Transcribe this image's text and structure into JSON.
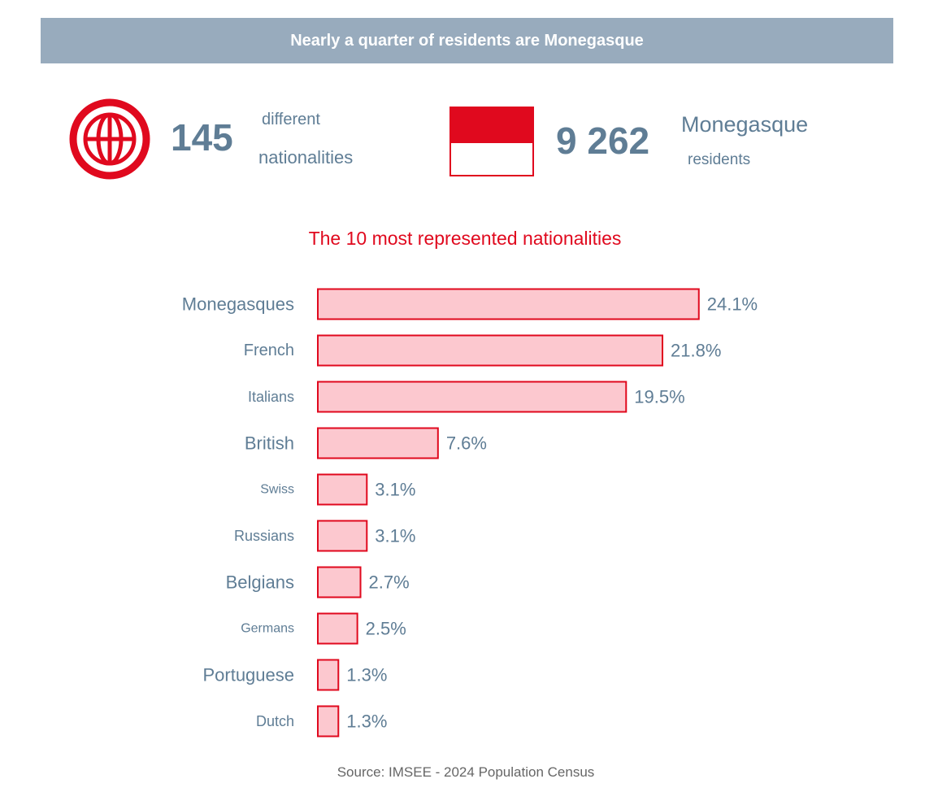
{
  "header": {
    "title": "Nearly a quarter of residents are Monegasque"
  },
  "stats": {
    "nationalities": {
      "value": "145",
      "label_top": "different",
      "label_bottom": "nationalities",
      "icon": "globe-icon"
    },
    "monegasques": {
      "value": "9 262",
      "label_top": "Monegasque",
      "label_bottom": "residents",
      "icon": "monaco-flag-icon"
    }
  },
  "colors": {
    "accent": "#e0091e",
    "bar_fill": "#fcc8cf",
    "text": "#5f7d95",
    "banner": "#98abbd"
  },
  "chart_data": {
    "type": "bar",
    "orientation": "horizontal",
    "title": "The 10 most represented nationalities",
    "categories": [
      "Monegasques",
      "French",
      "Italians",
      "British",
      "Swiss",
      "Russians",
      "Belgians",
      "Germans",
      "Portuguese",
      "Dutch"
    ],
    "values": [
      24.1,
      21.8,
      19.5,
      7.6,
      3.1,
      3.1,
      2.7,
      2.5,
      1.3,
      1.3
    ],
    "value_labels": [
      "24.1%",
      "21.8%",
      "19.5%",
      "7.6%",
      "3.1%",
      "3.1%",
      "2.7%",
      "2.5%",
      "1.3%",
      "1.3%"
    ],
    "grid": false,
    "legend": "none"
  },
  "source": "Source: IMSEE - 2024 Population Census"
}
